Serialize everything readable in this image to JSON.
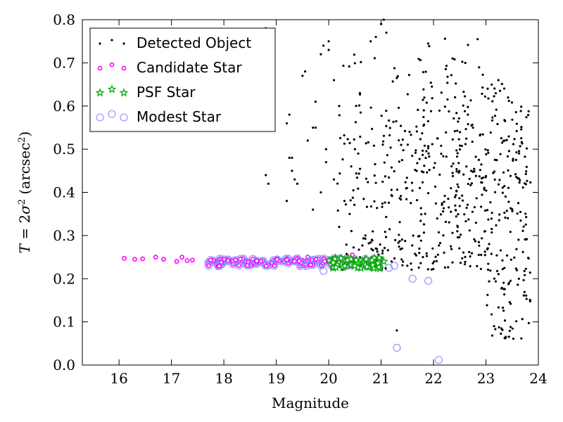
{
  "chart_data": {
    "type": "scatter",
    "title": "",
    "xlabel": "Magnitude",
    "ylabel": "T = 2σ² (arcsec²)",
    "ylabel_parts": {
      "var": "T",
      "eq": " = 2",
      "sigma": "σ",
      "sq1": "2",
      "unit_open": " (arcsec",
      "sq2": "2",
      "unit_close": ")"
    },
    "xlim": [
      15.3,
      24.0
    ],
    "ylim": [
      0.0,
      0.8
    ],
    "x_ticks": [
      16,
      17,
      18,
      19,
      20,
      21,
      22,
      23,
      24
    ],
    "x_tick_labels": [
      "16",
      "17",
      "18",
      "19",
      "20",
      "21",
      "22",
      "23",
      "24"
    ],
    "y_ticks": [
      0.0,
      0.1,
      0.2,
      0.3,
      0.4,
      0.5,
      0.6,
      0.7,
      0.8
    ],
    "y_tick_labels": [
      "0.0",
      "0.1",
      "0.2",
      "0.3",
      "0.4",
      "0.5",
      "0.6",
      "0.7",
      "0.8"
    ],
    "grid": false,
    "legend_position": "top-left",
    "series": [
      {
        "name": "Detected Object",
        "marker": "dot",
        "color": "#000000",
        "generated": {
          "description": "field of detected objects (many points; faint galaxies scatter upward at magnitudes 20–23.8, bright stars along the stellar locus near T≈0.24)"
        },
        "points": [
          [
            18.8,
            0.44
          ],
          [
            18.85,
            0.42
          ],
          [
            19.2,
            0.38
          ],
          [
            19.25,
            0.48
          ],
          [
            19.3,
            0.48
          ],
          [
            19.3,
            0.45
          ],
          [
            19.35,
            0.43
          ],
          [
            19.2,
            0.56
          ],
          [
            19.25,
            0.58
          ],
          [
            19.5,
            0.67
          ],
          [
            19.55,
            0.68
          ],
          [
            19.7,
            0.55
          ],
          [
            19.75,
            0.55
          ],
          [
            19.75,
            0.61
          ],
          [
            19.85,
            0.72
          ],
          [
            19.9,
            0.74
          ],
          [
            20.0,
            0.75
          ],
          [
            20.0,
            0.73
          ],
          [
            19.95,
            0.5
          ],
          [
            19.95,
            0.47
          ],
          [
            19.7,
            0.36
          ],
          [
            19.85,
            0.4
          ],
          [
            19.6,
            0.52
          ],
          [
            18.8,
            0.78
          ],
          [
            19.4,
            0.42
          ],
          [
            20.1,
            0.66
          ],
          [
            20.1,
            0.43
          ],
          [
            20.2,
            0.32
          ],
          [
            20.3,
            0.38
          ],
          [
            20.4,
            0.35
          ],
          [
            20.2,
            0.6
          ],
          [
            20.5,
            0.5
          ],
          [
            20.6,
            0.25
          ],
          [
            20.7,
            0.3
          ],
          [
            20.9,
            0.27
          ],
          [
            21.0,
            0.79
          ],
          [
            21.05,
            0.8
          ],
          [
            21.1,
            0.77
          ],
          [
            20.8,
            0.75
          ],
          [
            20.9,
            0.76
          ],
          [
            21.3,
            0.08
          ],
          [
            21.0,
            0.24
          ],
          [
            21.2,
            0.24
          ],
          [
            21.4,
            0.27
          ],
          [
            21.5,
            0.23
          ]
        ]
      },
      {
        "name": "Candidate Star",
        "marker": "circle-small",
        "color": "#ff00ff",
        "generated": {
          "description": "stellar locus candidates along T≈0.24 from magnitude 16 to about 21"
        },
        "points": [
          [
            16.1,
            0.247
          ],
          [
            16.3,
            0.245
          ],
          [
            16.45,
            0.246
          ],
          [
            16.7,
            0.25
          ],
          [
            16.85,
            0.245
          ],
          [
            17.1,
            0.24
          ],
          [
            17.2,
            0.25
          ],
          [
            17.3,
            0.242
          ],
          [
            17.4,
            0.243
          ],
          [
            17.75,
            0.24
          ],
          [
            17.8,
            0.24
          ],
          [
            17.85,
            0.238
          ],
          [
            17.95,
            0.245
          ],
          [
            18.0,
            0.24
          ],
          [
            18.1,
            0.243
          ],
          [
            18.15,
            0.24
          ],
          [
            18.25,
            0.237
          ],
          [
            18.35,
            0.24
          ],
          [
            18.45,
            0.242
          ],
          [
            18.5,
            0.238
          ],
          [
            18.55,
            0.24
          ],
          [
            18.6,
            0.245
          ],
          [
            18.65,
            0.235
          ],
          [
            19.15,
            0.242
          ],
          [
            19.2,
            0.24
          ],
          [
            19.25,
            0.237
          ],
          [
            19.3,
            0.24
          ],
          [
            19.35,
            0.245
          ],
          [
            19.4,
            0.24
          ],
          [
            19.45,
            0.238
          ],
          [
            19.5,
            0.243
          ],
          [
            19.55,
            0.24
          ],
          [
            19.6,
            0.25
          ],
          [
            19.7,
            0.236
          ],
          [
            19.75,
            0.24
          ],
          [
            19.8,
            0.242
          ],
          [
            19.85,
            0.24
          ],
          [
            20.05,
            0.245
          ],
          [
            20.45,
            0.255
          ]
        ]
      },
      {
        "name": "PSF Star",
        "marker": "star",
        "color": "#00aa00",
        "generated": {
          "description": "PSF reserve stars clustered at magnitudes 20.0–21.0 along the stellar locus"
        },
        "points": [
          [
            20.05,
            0.24
          ],
          [
            20.1,
            0.23
          ],
          [
            20.15,
            0.245
          ],
          [
            20.2,
            0.235
          ],
          [
            20.25,
            0.24
          ],
          [
            20.4,
            0.235
          ],
          [
            20.5,
            0.232
          ],
          [
            20.55,
            0.24
          ],
          [
            20.6,
            0.228
          ],
          [
            20.65,
            0.24
          ],
          [
            20.7,
            0.245
          ],
          [
            20.75,
            0.23
          ],
          [
            20.8,
            0.24
          ],
          [
            20.85,
            0.225
          ],
          [
            20.9,
            0.245
          ],
          [
            20.95,
            0.235
          ],
          [
            21.05,
            0.24
          ]
        ]
      },
      {
        "name": "Modest Star",
        "marker": "circle-large",
        "color": "#8c8cff",
        "generated": {
          "description": "modest star classification, overlapping the stellar locus from magnitude 16 to 22"
        },
        "points": [
          [
            19.9,
            0.218
          ],
          [
            21.15,
            0.225
          ],
          [
            21.25,
            0.23
          ],
          [
            21.6,
            0.2
          ],
          [
            21.9,
            0.195
          ],
          [
            21.3,
            0.04
          ],
          [
            22.1,
            0.012
          ]
        ]
      }
    ]
  }
}
